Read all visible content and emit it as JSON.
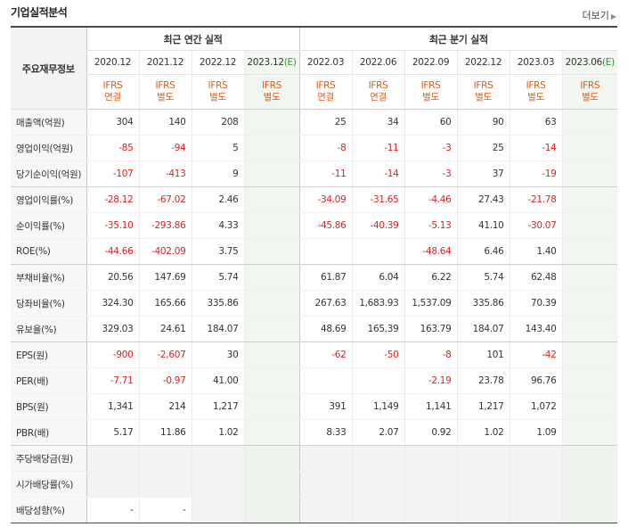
{
  "title": "기업실적분석",
  "more_label": "더보기",
  "corner_label": "주요재무정보",
  "group_annual": "최근 연간 실적",
  "group_quarter": "최근 분기 실적",
  "periods": [
    {
      "label": "2020.12",
      "est": "",
      "std": "IFRS",
      "basis": "연결"
    },
    {
      "label": "2021.12",
      "est": "",
      "std": "IFRS",
      "basis": "별도"
    },
    {
      "label": "2022.12",
      "est": "",
      "std": "IFRS",
      "basis": "별도"
    },
    {
      "label": "2023.12",
      "est": "(E)",
      "std": "IFRS",
      "basis": "별도"
    },
    {
      "label": "2022.03",
      "est": "",
      "std": "IFRS",
      "basis": "연결"
    },
    {
      "label": "2022.06",
      "est": "",
      "std": "IFRS",
      "basis": "연결"
    },
    {
      "label": "2022.09",
      "est": "",
      "std": "IFRS",
      "basis": "별도"
    },
    {
      "label": "2022.12",
      "est": "",
      "std": "IFRS",
      "basis": "별도"
    },
    {
      "label": "2023.03",
      "est": "",
      "std": "IFRS",
      "basis": "별도"
    },
    {
      "label": "2023.06",
      "est": "(E)",
      "std": "IFRS",
      "basis": "별도"
    }
  ],
  "rows": [
    {
      "label": "매출액(억원)",
      "values": [
        "304",
        "140",
        "208",
        "",
        "25",
        "34",
        "60",
        "90",
        "63",
        ""
      ]
    },
    {
      "label": "영업이익(억원)",
      "values": [
        "-85",
        "-94",
        "5",
        "",
        "-8",
        "-11",
        "-3",
        "25",
        "-14",
        ""
      ]
    },
    {
      "label": "당기순이익(억원)",
      "values": [
        "-107",
        "-413",
        "9",
        "",
        "-11",
        "-14",
        "-3",
        "37",
        "-19",
        ""
      ]
    },
    {
      "label": "영업이익률(%)",
      "values": [
        "-28.12",
        "-67.02",
        "2.46",
        "",
        "-34.09",
        "-31.65",
        "-4.46",
        "27.43",
        "-21.78",
        ""
      ]
    },
    {
      "label": "순이익률(%)",
      "values": [
        "-35.10",
        "-293.86",
        "4.33",
        "",
        "-45.86",
        "-40.39",
        "-5.13",
        "41.10",
        "-30.07",
        ""
      ]
    },
    {
      "label": "ROE(%)",
      "values": [
        "-44.66",
        "-402.09",
        "3.75",
        "",
        "",
        "",
        "-48.64",
        "6.46",
        "1.40",
        ""
      ]
    },
    {
      "label": "부채비율(%)",
      "values": [
        "20.56",
        "147.69",
        "5.74",
        "",
        "61.87",
        "6.04",
        "6.22",
        "5.74",
        "62.48",
        ""
      ]
    },
    {
      "label": "당좌비율(%)",
      "values": [
        "324.30",
        "165.66",
        "335.86",
        "",
        "267.63",
        "1,683.93",
        "1,537.09",
        "335.86",
        "70.39",
        ""
      ]
    },
    {
      "label": "유보율(%)",
      "values": [
        "329.03",
        "24.61",
        "184.07",
        "",
        "48.69",
        "165.39",
        "163.79",
        "184.07",
        "143.40",
        ""
      ]
    },
    {
      "label": "EPS(원)",
      "values": [
        "-900",
        "-2,607",
        "30",
        "",
        "-62",
        "-50",
        "-8",
        "101",
        "-42",
        ""
      ]
    },
    {
      "label": "PER(배)",
      "values": [
        "-7.71",
        "-0.97",
        "41.00",
        "",
        "",
        "",
        "-2.19",
        "23.78",
        "96.76",
        ""
      ]
    },
    {
      "label": "BPS(원)",
      "values": [
        "1,341",
        "214",
        "1,217",
        "",
        "391",
        "1,149",
        "1,141",
        "1,217",
        "1,072",
        ""
      ]
    },
    {
      "label": "PBR(배)",
      "values": [
        "5.17",
        "11.86",
        "1.02",
        "",
        "8.33",
        "2.07",
        "0.92",
        "1.02",
        "1.09",
        ""
      ]
    },
    {
      "label": "주당배당금(원)",
      "values": [
        "",
        "",
        "",
        "",
        "",
        "",
        "",
        "",
        "",
        ""
      ]
    },
    {
      "label": "시가배당률(%)",
      "values": [
        "",
        "",
        "",
        "",
        "",
        "",
        "",
        "",
        "",
        ""
      ]
    },
    {
      "label": "배당성향(%)",
      "values": [
        "-",
        "-",
        "",
        "",
        "",
        "",
        "",
        "",
        "",
        ""
      ]
    }
  ]
}
